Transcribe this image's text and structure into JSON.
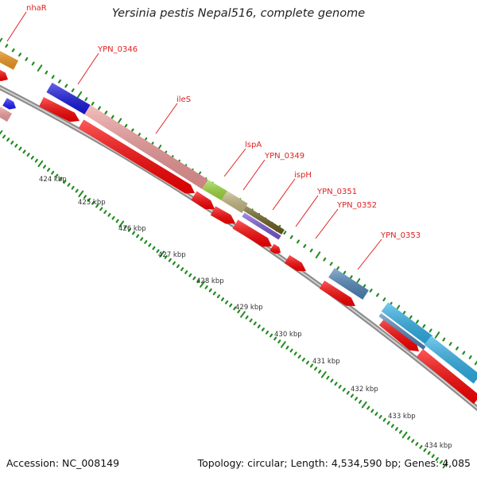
{
  "title": "Yersinia pestis Nepal516, complete genome",
  "accession": "Accession: NC_008149",
  "summary": "Topology: circular; Length: 4,534,590 bp; Genes: 4,085",
  "colors": {
    "backbone": "#8a8a8a",
    "tick": "#228b22",
    "cds": "#ff0000",
    "label": "#e0201f"
  },
  "gene_labels": [
    "nhaR",
    "YPN_0346",
    "ileS",
    "lspA",
    "YPN_0349",
    "ispH",
    "YPN_0351",
    "YPN_0352",
    "YPN_0353"
  ],
  "kbp_labels": [
    "424 kbp",
    "425 kbp",
    "426 kbp",
    "427 kbp",
    "428 kbp",
    "429 kbp",
    "430 kbp",
    "431 kbp",
    "432 kbp",
    "433 kbp",
    "434 kbp"
  ]
}
